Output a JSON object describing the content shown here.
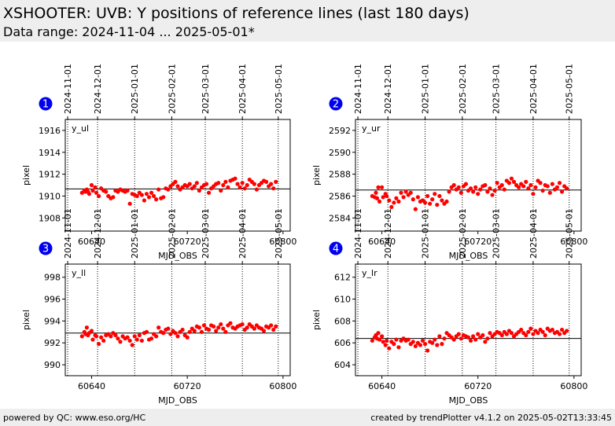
{
  "header": {
    "title": "XSHOOTER: UVB: Y positions of reference lines (last 180 days)",
    "subtitle": "Data range: 2024-11-04 ... 2025-05-01*"
  },
  "footer": {
    "left": "powered by QC: www.eso.org/HC",
    "right": "created by trendPlotter v4.1.2 on 2025-05-02T13:33:45"
  },
  "colors": {
    "points": "#ff0000",
    "badge": "#0000ee",
    "header_bg": "#eeeeee"
  },
  "chart_data": [
    {
      "type": "scatter",
      "badge": "1",
      "label": "y_ul",
      "xlabel": "MJD_OBS",
      "ylabel": "pixel",
      "xlim": [
        60618,
        60806
      ],
      "ylim": [
        1906.8,
        1917.0
      ],
      "xticks": [
        60640,
        60720,
        60800
      ],
      "yticks": [
        1908,
        1910,
        1912,
        1914,
        1916
      ],
      "reference": 1910.65,
      "month_lines": [
        {
          "mjd": 60620,
          "date": "2024-11-01"
        },
        {
          "mjd": 60645,
          "date": "2024-12-01"
        },
        {
          "mjd": 60676,
          "date": "2025-01-01"
        },
        {
          "mjd": 60707,
          "date": "2025-02-01"
        },
        {
          "mjd": 60735,
          "date": "2025-03-01"
        },
        {
          "mjd": 60766,
          "date": "2025-04-01"
        },
        {
          "mjd": 60796,
          "date": "2025-05-01"
        }
      ],
      "x": [
        60632,
        60634,
        60635,
        60636,
        60637,
        60638,
        60640,
        60641,
        60643,
        60644,
        60646,
        60648,
        60650,
        60652,
        60654,
        60656,
        60658,
        60660,
        60662,
        60664,
        60666,
        60668,
        60670,
        60672,
        60674,
        60676,
        60678,
        60680,
        60682,
        60684,
        60686,
        60688,
        60690,
        60692,
        60694,
        60696,
        60698,
        60700,
        60702,
        60704,
        60706,
        60708,
        60710,
        60712,
        60714,
        60716,
        60718,
        60720,
        60722,
        60724,
        60726,
        60728,
        60730,
        60732,
        60734,
        60736,
        60738,
        60740,
        60742,
        60744,
        60746,
        60748,
        60750,
        60752,
        60754,
        60756,
        60758,
        60760,
        60762,
        60764,
        60766,
        60768,
        60770,
        60772,
        60774,
        60776,
        60778,
        60780,
        60782,
        60784,
        60786,
        60788,
        60790,
        60792,
        60794
      ],
      "y": [
        1910.3,
        1910.5,
        1910.4,
        1910.6,
        1910.4,
        1910.2,
        1911.0,
        1910.5,
        1910.8,
        1910.3,
        1910.0,
        1910.7,
        1910.5,
        1910.4,
        1910.0,
        1909.8,
        1909.9,
        1910.5,
        1910.4,
        1910.6,
        1910.5,
        1910.4,
        1910.5,
        1909.3,
        1910.2,
        1910.1,
        1910.0,
        1910.3,
        1910.1,
        1909.6,
        1910.2,
        1909.9,
        1910.3,
        1910.0,
        1909.7,
        1910.6,
        1909.8,
        1909.9,
        1910.7,
        1910.6,
        1910.9,
        1911.1,
        1911.3,
        1910.9,
        1910.6,
        1910.8,
        1911.0,
        1910.9,
        1911.1,
        1910.7,
        1910.9,
        1911.2,
        1910.5,
        1910.8,
        1911.0,
        1911.1,
        1910.3,
        1910.7,
        1910.9,
        1911.1,
        1911.2,
        1910.5,
        1911.0,
        1911.3,
        1910.8,
        1911.4,
        1911.5,
        1911.6,
        1911.1,
        1910.8,
        1911.2,
        1910.7,
        1911.0,
        1911.5,
        1911.3,
        1911.1,
        1910.6,
        1911.0,
        1911.2,
        1911.4,
        1911.3,
        1910.9,
        1911.1,
        1910.7,
        1911.3
      ]
    },
    {
      "type": "scatter",
      "badge": "2",
      "label": "y_ur",
      "xlabel": "MJD_OBS",
      "ylabel": "pixel",
      "xlim": [
        60618,
        60806
      ],
      "ylim": [
        2582.8,
        2593.0
      ],
      "xticks": [
        60640,
        60720,
        60800
      ],
      "yticks": [
        2584,
        2586,
        2588,
        2590,
        2592
      ],
      "reference": 2586.55,
      "month_lines": [
        {
          "mjd": 60620,
          "date": "2024-11-01"
        },
        {
          "mjd": 60645,
          "date": "2024-12-01"
        },
        {
          "mjd": 60676,
          "date": "2025-01-01"
        },
        {
          "mjd": 60707,
          "date": "2025-02-01"
        },
        {
          "mjd": 60735,
          "date": "2025-03-01"
        },
        {
          "mjd": 60766,
          "date": "2025-04-01"
        },
        {
          "mjd": 60796,
          "date": "2025-05-01"
        }
      ],
      "x": [
        60632,
        60634,
        60635,
        60636,
        60637,
        60638,
        60640,
        60641,
        60643,
        60644,
        60646,
        60648,
        60650,
        60652,
        60654,
        60656,
        60658,
        60660,
        60662,
        60664,
        60666,
        60668,
        60670,
        60672,
        60674,
        60676,
        60678,
        60680,
        60682,
        60684,
        60686,
        60688,
        60690,
        60692,
        60694,
        60696,
        60698,
        60700,
        60702,
        60704,
        60706,
        60708,
        60710,
        60712,
        60714,
        60716,
        60718,
        60720,
        60722,
        60724,
        60726,
        60728,
        60730,
        60732,
        60734,
        60736,
        60738,
        60740,
        60742,
        60744,
        60746,
        60748,
        60750,
        60752,
        60754,
        60756,
        60758,
        60760,
        60762,
        60764,
        60766,
        60768,
        60770,
        60772,
        60774,
        60776,
        60778,
        60780,
        60782,
        60784,
        60786,
        60788,
        60790,
        60792,
        60794
      ],
      "y": [
        2586.0,
        2585.9,
        2586.3,
        2585.8,
        2586.8,
        2585.5,
        2586.8,
        2585.9,
        2586.2,
        2586.0,
        2585.6,
        2585.0,
        2585.4,
        2585.8,
        2585.5,
        2586.3,
        2585.9,
        2586.4,
        2586.1,
        2586.3,
        2585.7,
        2584.8,
        2585.9,
        2585.5,
        2585.6,
        2585.4,
        2586.0,
        2585.3,
        2585.7,
        2586.2,
        2585.2,
        2586.0,
        2585.6,
        2585.3,
        2585.5,
        2586.4,
        2586.8,
        2587.0,
        2586.6,
        2586.8,
        2586.3,
        2586.9,
        2587.1,
        2586.5,
        2586.7,
        2586.4,
        2586.8,
        2586.2,
        2586.6,
        2586.9,
        2587.0,
        2586.4,
        2586.7,
        2586.1,
        2586.5,
        2587.2,
        2586.8,
        2587.0,
        2586.6,
        2587.4,
        2587.2,
        2587.6,
        2587.3,
        2587.0,
        2586.8,
        2587.1,
        2586.9,
        2587.3,
        2586.7,
        2587.0,
        2586.2,
        2586.8,
        2587.4,
        2587.2,
        2586.5,
        2587.0,
        2586.9,
        2586.3,
        2587.1,
        2586.6,
        2586.8,
        2587.2,
        2586.4,
        2586.9,
        2586.7
      ]
    },
    {
      "type": "scatter",
      "badge": "3",
      "label": "y_ll",
      "xlabel": "MJD_OBS",
      "ylabel": "pixel",
      "xlim": [
        60618,
        60806
      ],
      "ylim": [
        989.0,
        999.2
      ],
      "xticks": [
        60640,
        60720,
        60800
      ],
      "yticks": [
        990,
        992,
        994,
        996,
        998
      ],
      "reference": 992.9,
      "month_lines": [
        {
          "mjd": 60620,
          "date": "2024-11-01"
        },
        {
          "mjd": 60645,
          "date": "2024-12-01"
        },
        {
          "mjd": 60676,
          "date": "2025-01-01"
        },
        {
          "mjd": 60707,
          "date": "2025-02-01"
        },
        {
          "mjd": 60735,
          "date": "2025-03-01"
        },
        {
          "mjd": 60766,
          "date": "2025-04-01"
        },
        {
          "mjd": 60796,
          "date": "2025-05-01"
        }
      ],
      "x": [
        60632,
        60634,
        60635,
        60636,
        60637,
        60638,
        60640,
        60641,
        60643,
        60644,
        60646,
        60648,
        60650,
        60652,
        60654,
        60656,
        60658,
        60660,
        60662,
        60664,
        60666,
        60668,
        60670,
        60672,
        60674,
        60676,
        60678,
        60680,
        60682,
        60684,
        60686,
        60688,
        60690,
        60692,
        60694,
        60696,
        60698,
        60700,
        60702,
        60704,
        60706,
        60708,
        60710,
        60712,
        60714,
        60716,
        60718,
        60720,
        60722,
        60724,
        60726,
        60728,
        60730,
        60732,
        60734,
        60736,
        60738,
        60740,
        60742,
        60744,
        60746,
        60748,
        60750,
        60752,
        60754,
        60756,
        60758,
        60760,
        60762,
        60764,
        60766,
        60768,
        60770,
        60772,
        60774,
        60776,
        60778,
        60780,
        60782,
        60784,
        60786,
        60788,
        60790,
        60792,
        60794
      ],
      "y": [
        992.6,
        993.0,
        992.8,
        993.4,
        992.7,
        992.9,
        993.1,
        992.3,
        992.7,
        992.6,
        991.9,
        992.5,
        992.2,
        992.7,
        992.8,
        992.6,
        992.9,
        992.7,
        992.4,
        992.1,
        992.6,
        992.4,
        992.5,
        992.2,
        991.8,
        992.6,
        992.3,
        992.7,
        992.2,
        992.9,
        993.0,
        992.3,
        992.4,
        992.8,
        992.6,
        993.4,
        993.0,
        992.9,
        993.2,
        993.3,
        992.8,
        993.1,
        992.9,
        992.6,
        993.0,
        993.2,
        992.7,
        992.5,
        993.0,
        993.3,
        993.1,
        993.5,
        993.4,
        993.0,
        993.6,
        993.3,
        993.2,
        993.6,
        993.5,
        993.1,
        993.4,
        993.7,
        993.3,
        993.0,
        993.6,
        993.8,
        993.4,
        993.3,
        993.5,
        993.6,
        993.7,
        993.2,
        993.4,
        993.7,
        993.5,
        993.3,
        993.6,
        993.4,
        993.3,
        993.1,
        993.5,
        993.4,
        993.6,
        993.2,
        993.5
      ]
    },
    {
      "type": "scatter",
      "badge": "4",
      "label": "y_lr",
      "xlabel": "MJD_OBS",
      "ylabel": "pixel",
      "xlim": [
        60618,
        60806
      ],
      "ylim": [
        603.0,
        613.2
      ],
      "xticks": [
        60640,
        60720,
        60800
      ],
      "yticks": [
        604,
        606,
        608,
        610,
        612
      ],
      "reference": 606.4,
      "month_lines": [
        {
          "mjd": 60620,
          "date": "2024-11-01"
        },
        {
          "mjd": 60645,
          "date": "2024-12-01"
        },
        {
          "mjd": 60676,
          "date": "2025-01-01"
        },
        {
          "mjd": 60707,
          "date": "2025-02-01"
        },
        {
          "mjd": 60735,
          "date": "2025-03-01"
        },
        {
          "mjd": 60766,
          "date": "2025-04-01"
        },
        {
          "mjd": 60796,
          "date": "2025-05-01"
        }
      ],
      "x": [
        60632,
        60634,
        60635,
        60636,
        60637,
        60638,
        60640,
        60641,
        60643,
        60644,
        60646,
        60648,
        60650,
        60652,
        60654,
        60656,
        60658,
        60660,
        60662,
        60664,
        60666,
        60668,
        60670,
        60672,
        60674,
        60676,
        60678,
        60680,
        60682,
        60684,
        60686,
        60688,
        60690,
        60692,
        60694,
        60696,
        60698,
        60700,
        60702,
        60704,
        60706,
        60708,
        60710,
        60712,
        60714,
        60716,
        60718,
        60720,
        60722,
        60724,
        60726,
        60728,
        60730,
        60732,
        60734,
        60736,
        60738,
        60740,
        60742,
        60744,
        60746,
        60748,
        60750,
        60752,
        60754,
        60756,
        60758,
        60760,
        60762,
        60764,
        60766,
        60768,
        60770,
        60772,
        60774,
        60776,
        60778,
        60780,
        60782,
        60784,
        60786,
        60788,
        60790,
        60792,
        60794
      ],
      "y": [
        606.2,
        606.5,
        606.7,
        606.4,
        606.9,
        606.3,
        606.6,
        606.1,
        605.8,
        606.2,
        605.5,
        606.1,
        605.9,
        606.3,
        605.6,
        606.2,
        606.4,
        606.2,
        606.3,
        605.9,
        606.1,
        605.7,
        606.0,
        605.8,
        606.2,
        605.9,
        605.3,
        606.1,
        606.0,
        606.3,
        605.8,
        606.6,
        605.9,
        606.4,
        606.9,
        606.7,
        606.5,
        606.3,
        606.6,
        606.8,
        606.4,
        606.7,
        606.6,
        606.5,
        606.2,
        606.6,
        606.3,
        606.8,
        606.5,
        606.7,
        606.1,
        606.4,
        606.9,
        606.6,
        606.8,
        607.0,
        606.9,
        606.7,
        607.0,
        606.8,
        607.1,
        606.9,
        606.6,
        606.8,
        607.0,
        607.2,
        606.9,
        606.7,
        607.0,
        607.3,
        606.8,
        607.1,
        606.9,
        607.2,
        607.0,
        606.7,
        607.3,
        607.1,
        607.2,
        606.9,
        607.0,
        606.8,
        607.2,
        606.9,
        607.1
      ]
    }
  ]
}
